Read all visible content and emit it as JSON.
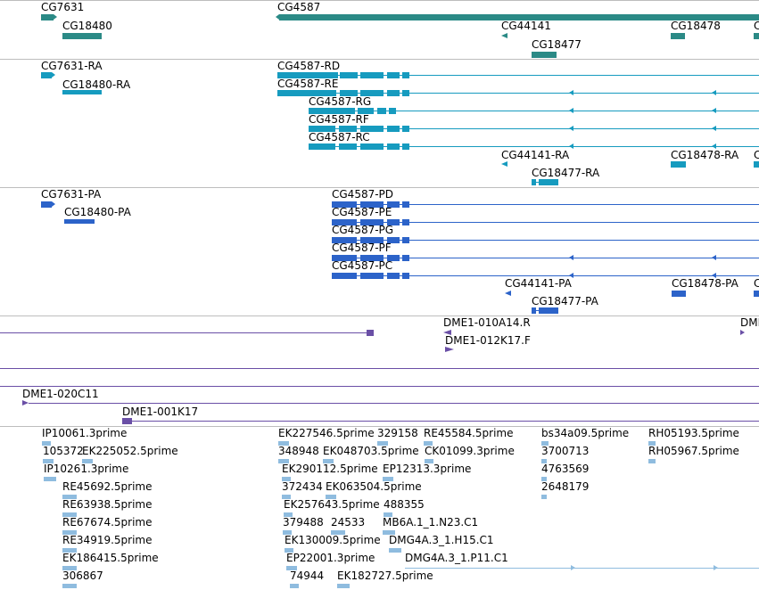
{
  "colors": {
    "gene": "#2b8a86",
    "transcript": "#169bbf",
    "protein": "#2c63c9",
    "est_clone": "#6a4fa6",
    "cdna_read": "#8fbcdf"
  },
  "genes": [
    {
      "label": "CG7631"
    },
    {
      "label": "CG4587"
    },
    {
      "label": "CG18480"
    },
    {
      "label": "CG44141"
    },
    {
      "label": "CG18478"
    },
    {
      "label": "CG18477"
    }
  ],
  "transcripts": [
    {
      "label": "CG7631-RA"
    },
    {
      "label": "CG4587-RD"
    },
    {
      "label": "CG18480-RA"
    },
    {
      "label": "CG4587-RE"
    },
    {
      "label": "CG4587-RG"
    },
    {
      "label": "CG4587-RF"
    },
    {
      "label": "CG4587-RC"
    },
    {
      "label": "CG44141-RA"
    },
    {
      "label": "CG18478-RA"
    },
    {
      "label": "CG18477-RA"
    }
  ],
  "proteins": [
    {
      "label": "CG7631-PA"
    },
    {
      "label": "CG4587-PD"
    },
    {
      "label": "CG18480-PA"
    },
    {
      "label": "CG4587-PE"
    },
    {
      "label": "CG4587-PG"
    },
    {
      "label": "CG4587-PF"
    },
    {
      "label": "CG4587-PC"
    },
    {
      "label": "CG44141-PA"
    },
    {
      "label": "CG18478-PA"
    },
    {
      "label": "CG18477-PA"
    }
  ],
  "clones": [
    {
      "label": "DME1-010A14.R"
    },
    {
      "label": "DME1-012K17.F"
    },
    {
      "label": "DMI"
    },
    {
      "label": "DME1-020C11"
    },
    {
      "label": "DME1-001K17"
    }
  ],
  "reads": [
    {
      "label": "IP10061.3prime"
    },
    {
      "label": "105372"
    },
    {
      "label": "EK225052.5prime"
    },
    {
      "label": "IP10261.3prime"
    },
    {
      "label": "RE45692.5prime"
    },
    {
      "label": "RE63938.5prime"
    },
    {
      "label": "RE67674.5prime"
    },
    {
      "label": "RE34919.5prime"
    },
    {
      "label": "EK186415.5prime"
    },
    {
      "label": "306867"
    },
    {
      "label": "EK227546.5prime"
    },
    {
      "label": "329158"
    },
    {
      "label": "RE45584.5prime"
    },
    {
      "label": "348948"
    },
    {
      "label": "EK048703.5prime"
    },
    {
      "label": "CK01099.3prime"
    },
    {
      "label": "EK290112.5prime"
    },
    {
      "label": "EP12313.3prime"
    },
    {
      "label": "372434"
    },
    {
      "label": "EK063504.5prime"
    },
    {
      "label": "EK257643.5prime"
    },
    {
      "label": "488355"
    },
    {
      "label": "379488"
    },
    {
      "label": "24533"
    },
    {
      "label": "MB6A.1_1.N23.C1"
    },
    {
      "label": "EK130009.5prime"
    },
    {
      "label": "DMG4A.3_1.H15.C1"
    },
    {
      "label": "EP22001.3prime"
    },
    {
      "label": "DMG4A.3_1.P11.C1"
    },
    {
      "label": "74944"
    },
    {
      "label": "EK182727.5prime"
    },
    {
      "label": "bs34a09.5prime"
    },
    {
      "label": "3700713"
    },
    {
      "label": "4763569"
    },
    {
      "label": "2648179"
    },
    {
      "label": "RH05193.5prime"
    },
    {
      "label": "RH05967.5prime"
    }
  ]
}
